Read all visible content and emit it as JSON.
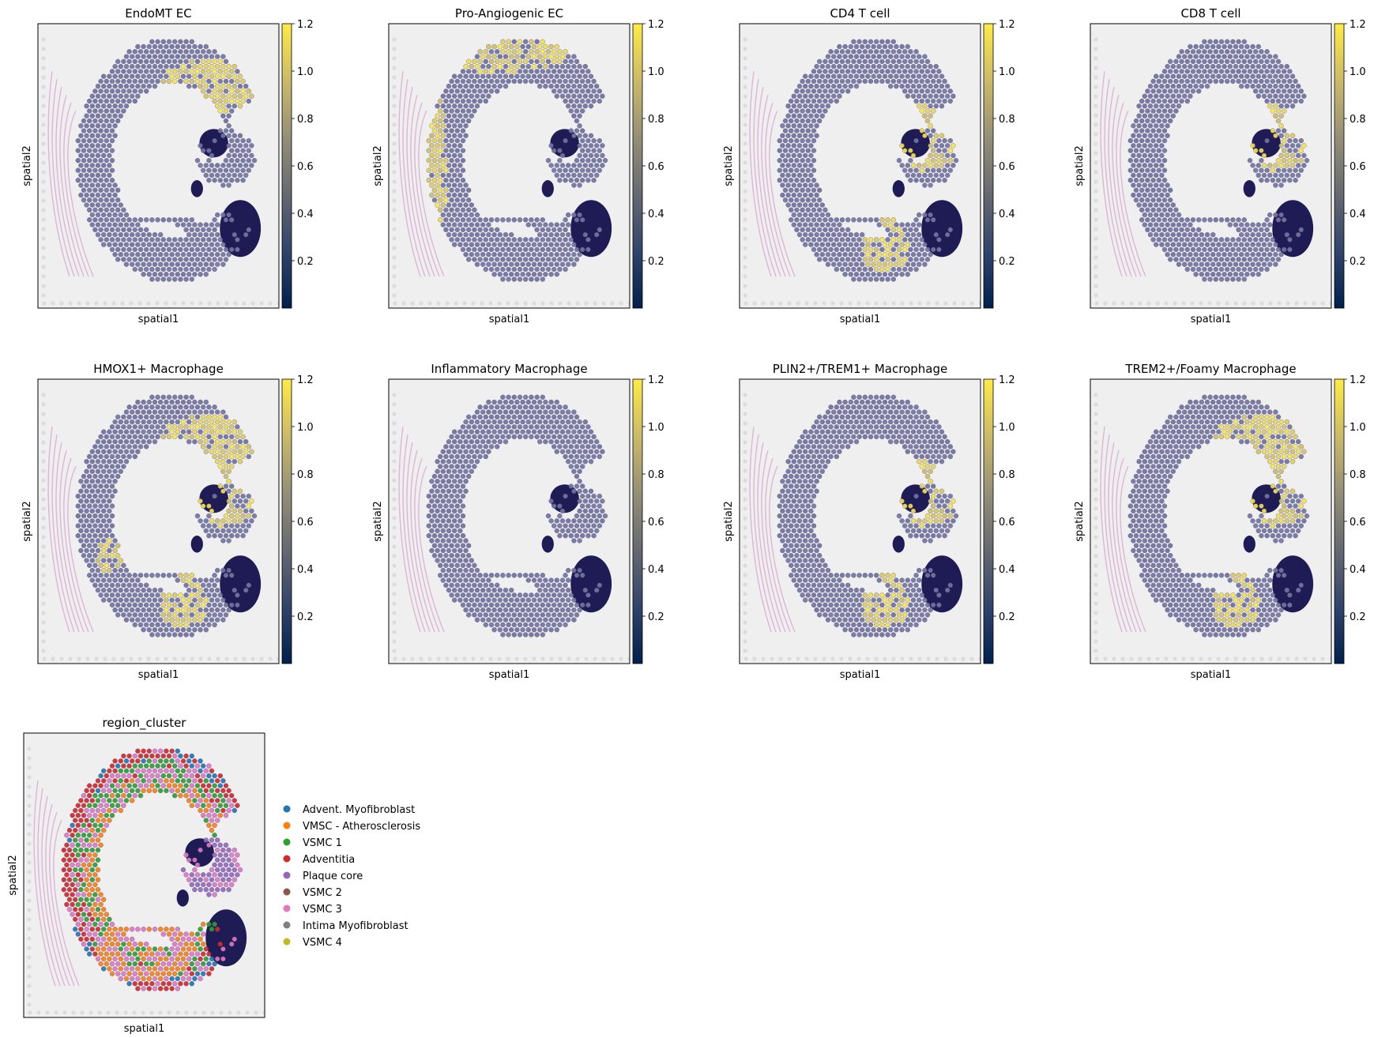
{
  "figure": {
    "colorscale": {
      "name": "cividis",
      "stops": [
        "#00204d",
        "#31446b",
        "#666970",
        "#958f78",
        "#cbba69",
        "#ffea46"
      ]
    },
    "tissue_colors": {
      "background": "#efeff0",
      "spot_base": "#6e6f9c",
      "spot_edge": "#4d4f7a",
      "dark_lesion": "#1f1b55",
      "pink_stain": "#d8a6cf",
      "grid_dot": "#dcdcdf"
    }
  },
  "chart_data": [
    {
      "type": "scatter",
      "title": "EndoMT EC",
      "xlabel": "spatial1",
      "ylabel": "spatial2",
      "colorbar": {
        "vmin": 0,
        "vmax": 1.2,
        "ticks": [
          "0.2",
          "0.4",
          "0.6",
          "0.8",
          "1.0",
          "1.2"
        ]
      },
      "high_regions": [
        "outer-upper-right"
      ]
    },
    {
      "type": "scatter",
      "title": "Pro-Angiogenic EC",
      "xlabel": "spatial1",
      "ylabel": "spatial2",
      "colorbar": {
        "vmin": 0,
        "vmax": 1.2,
        "ticks": [
          "0.2",
          "0.4",
          "0.6",
          "0.8",
          "1.0",
          "1.2"
        ]
      },
      "high_regions": [
        "outer-top",
        "outer-left"
      ]
    },
    {
      "type": "scatter",
      "title": "CD4 T cell",
      "xlabel": "spatial1",
      "ylabel": "spatial2",
      "colorbar": {
        "vmin": 0,
        "vmax": 1.2,
        "ticks": [
          "0.2",
          "0.4",
          "0.6",
          "0.8",
          "1.0",
          "1.2"
        ]
      },
      "high_regions": [
        "plaque-upper",
        "lower-fold"
      ]
    },
    {
      "type": "scatter",
      "title": "CD8 T cell",
      "xlabel": "spatial1",
      "ylabel": "spatial2",
      "colorbar": {
        "vmin": 0,
        "vmax": 1.2,
        "ticks": [
          "0.2",
          "0.4",
          "0.6",
          "0.8",
          "1.0",
          "1.2"
        ]
      },
      "high_regions": [
        "plaque-upper"
      ]
    },
    {
      "type": "scatter",
      "title": "HMOX1+ Macrophage",
      "xlabel": "spatial1",
      "ylabel": "spatial2",
      "colorbar": {
        "vmin": 0,
        "vmax": 1.2,
        "ticks": [
          "0.2",
          "0.4",
          "0.6",
          "0.8",
          "1.0",
          "1.2"
        ]
      },
      "high_regions": [
        "plaque-upper",
        "outer-upper-right",
        "lower-fold",
        "left-mid"
      ]
    },
    {
      "type": "scatter",
      "title": "Inflammatory Macrophage",
      "xlabel": "spatial1",
      "ylabel": "spatial2",
      "colorbar": {
        "vmin": 0,
        "vmax": 1.2,
        "ticks": [
          "0.2",
          "0.4",
          "0.6",
          "0.8",
          "1.0",
          "1.2"
        ]
      },
      "high_regions": []
    },
    {
      "type": "scatter",
      "title": "PLIN2+/TREM1+ Macrophage",
      "xlabel": "spatial1",
      "ylabel": "spatial2",
      "colorbar": {
        "vmin": 0,
        "vmax": 1.2,
        "ticks": [
          "0.2",
          "0.4",
          "0.6",
          "0.8",
          "1.0",
          "1.2"
        ]
      },
      "high_regions": [
        "plaque-upper",
        "lower-fold"
      ]
    },
    {
      "type": "scatter",
      "title": "TREM2+/Foamy Macrophage",
      "xlabel": "spatial1",
      "ylabel": "spatial2",
      "colorbar": {
        "vmin": 0,
        "vmax": 1.2,
        "ticks": [
          "0.2",
          "0.4",
          "0.6",
          "0.8",
          "1.0",
          "1.2"
        ]
      },
      "high_regions": [
        "plaque-upper",
        "outer-upper-right",
        "lower-fold"
      ]
    },
    {
      "type": "scatter",
      "title": "region_cluster",
      "xlabel": "spatial1",
      "ylabel": "spatial2",
      "categorical": true,
      "legend": {
        "position": "right",
        "entries": [
          {
            "label": "Advent. Myofibroblast",
            "color": "#1f77b4"
          },
          {
            "label": "VMSC - Atherosclerosis",
            "color": "#ff7f0e"
          },
          {
            "label": "VSMC 1",
            "color": "#2ca02c"
          },
          {
            "label": "Adventitia",
            "color": "#d62728"
          },
          {
            "label": "Plaque core",
            "color": "#9467bd"
          },
          {
            "label": "VSMC 2",
            "color": "#8c564b"
          },
          {
            "label": "VSMC 3",
            "color": "#e377c2"
          },
          {
            "label": "Intima Myofibroblast",
            "color": "#7f7f7f"
          },
          {
            "label": "VSMC 4",
            "color": "#bcbd22"
          }
        ]
      }
    }
  ]
}
